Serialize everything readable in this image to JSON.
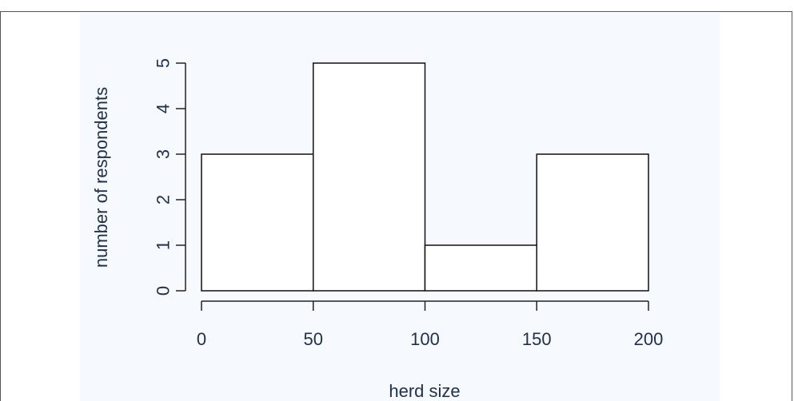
{
  "chart_data": {
    "type": "bar",
    "bins": [
      {
        "from": 0,
        "to": 50,
        "value": 3
      },
      {
        "from": 50,
        "to": 100,
        "value": 5
      },
      {
        "from": 100,
        "to": 150,
        "value": 1
      },
      {
        "from": 150,
        "to": 200,
        "value": 3
      }
    ],
    "x_ticks": [
      "0",
      "50",
      "100",
      "150",
      "200"
    ],
    "y_ticks": [
      "0",
      "1",
      "2",
      "3",
      "4",
      "5"
    ],
    "xlabel": "herd size",
    "ylabel": "number of respondents",
    "xlim": [
      0,
      200
    ],
    "ylim": [
      0,
      5
    ],
    "grid": false,
    "colors": {
      "bar_fill": "#ffffff",
      "bar_stroke": "#111111",
      "text": "#1e2f4f",
      "plot_background": "#f6f9fd"
    }
  }
}
